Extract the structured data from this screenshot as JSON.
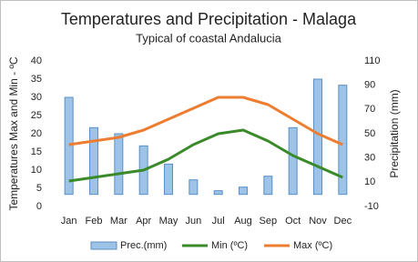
{
  "chart_data": {
    "type": "combo",
    "title": "Temperatures and Precipitation - Malaga",
    "subtitle": "Typical of coastal Andalucia",
    "y_label": "Temperatures Max and Min - ºC",
    "y2_label": "Precipitation (mm)",
    "categories": [
      "Jan",
      "Feb",
      "Mar",
      "Apr",
      "May",
      "Jun",
      "Jul",
      "Aug",
      "Sep",
      "Oct",
      "Nov",
      "Dec"
    ],
    "series": [
      {
        "name": "Prec.(mm)",
        "type": "bar",
        "axis": "y2",
        "color": "#9dc3e6",
        "values": [
          80,
          55,
          50,
          40,
          25,
          12,
          3,
          6,
          15,
          55,
          95,
          90
        ]
      },
      {
        "name": "Min (ºC)",
        "type": "line",
        "color": "#3a8a2a",
        "values": [
          7,
          8,
          9,
          10,
          13,
          17,
          20,
          21,
          18,
          14,
          11,
          8
        ]
      },
      {
        "name": "Max (ºC)",
        "type": "line",
        "color": "#ed7d31",
        "values": [
          17,
          18,
          19,
          21,
          24,
          27,
          30,
          30,
          28,
          24,
          20,
          17
        ]
      }
    ],
    "ylim": [
      0,
      40
    ],
    "yticks": [
      0,
      5,
      10,
      15,
      20,
      25,
      30,
      35,
      40
    ],
    "y2lim": [
      -10,
      110
    ],
    "y2ticks": [
      -10,
      10,
      30,
      50,
      70,
      90,
      110
    ],
    "grid": false,
    "legend": "bottom"
  }
}
